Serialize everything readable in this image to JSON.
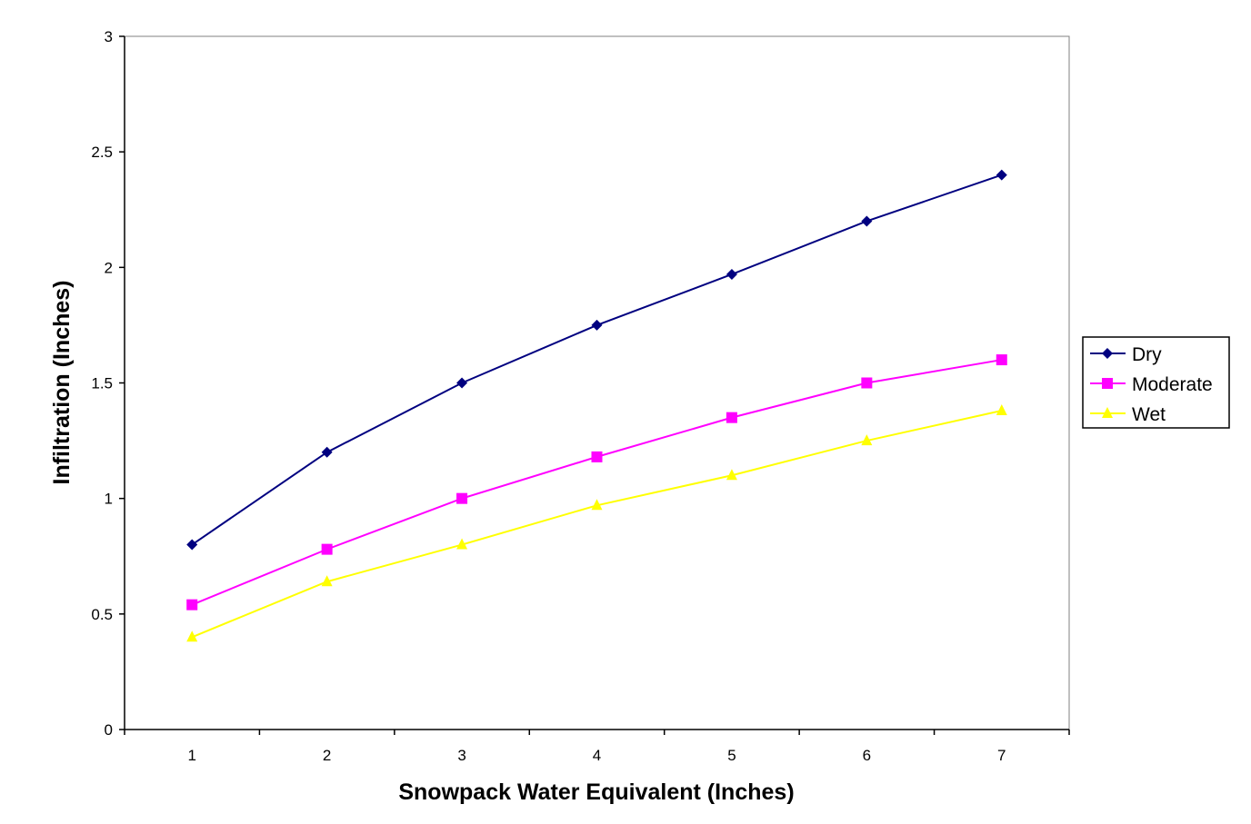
{
  "chart_data": {
    "type": "line",
    "title": "",
    "xlabel": "Snowpack Water Equivalent (Inches)",
    "ylabel": "Infiltration (Inches)",
    "categories": [
      "1",
      "2",
      "3",
      "4",
      "5",
      "6",
      "7"
    ],
    "ylim": [
      0,
      3
    ],
    "yticks": [
      "0",
      "0.5",
      "1",
      "1.5",
      "2",
      "2.5",
      "3"
    ],
    "grid": false,
    "legend_position": "right",
    "series": [
      {
        "name": "Dry",
        "color": "#000080",
        "marker": "diamond",
        "values": [
          0.8,
          1.2,
          1.5,
          1.75,
          1.97,
          2.2,
          2.4
        ]
      },
      {
        "name": "Moderate",
        "color": "#FF00FF",
        "marker": "square",
        "values": [
          0.54,
          0.78,
          1.0,
          1.18,
          1.35,
          1.5,
          1.6
        ]
      },
      {
        "name": "Wet",
        "color": "#FFFF00",
        "marker": "triangle",
        "values": [
          0.4,
          0.64,
          0.8,
          0.97,
          1.1,
          1.25,
          1.38
        ]
      }
    ]
  }
}
